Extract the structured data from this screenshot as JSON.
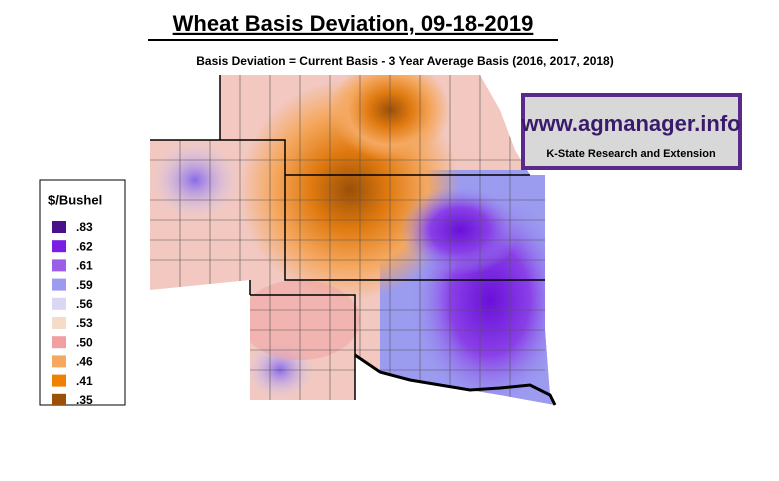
{
  "header": {
    "title": "Wheat Basis Deviation, 09-18-2019",
    "subtitle": "Basis Deviation = Current Basis - 3 Year Average Basis (2016, 2017, 2018)"
  },
  "logo": {
    "url": "www.agmanager.info",
    "org": "K-State Research and Extension"
  },
  "legend": {
    "title": "$/Bushel",
    "items": [
      {
        "value": 0.83,
        "label": ".83",
        "color": "#4b0f8c"
      },
      {
        "value": 0.62,
        "label": ".62",
        "color": "#7a1ee6"
      },
      {
        "value": 0.61,
        "label": ".61",
        "color": "#9a5ee8"
      },
      {
        "value": 0.59,
        "label": ".59",
        "color": "#9b9bf0"
      },
      {
        "value": 0.56,
        "label": ".56",
        "color": "#dcd6f5"
      },
      {
        "value": 0.53,
        "label": ".53",
        "color": "#f5dcc8"
      },
      {
        "value": 0.5,
        "label": ".50",
        "color": "#f0a0a0"
      },
      {
        "value": 0.46,
        "label": ".46",
        "color": "#f5a860"
      },
      {
        "value": 0.41,
        "label": ".41",
        "color": "#f08000"
      },
      {
        "value": 0.35,
        "label": ".35",
        "color": "#9a5008"
      }
    ]
  }
}
